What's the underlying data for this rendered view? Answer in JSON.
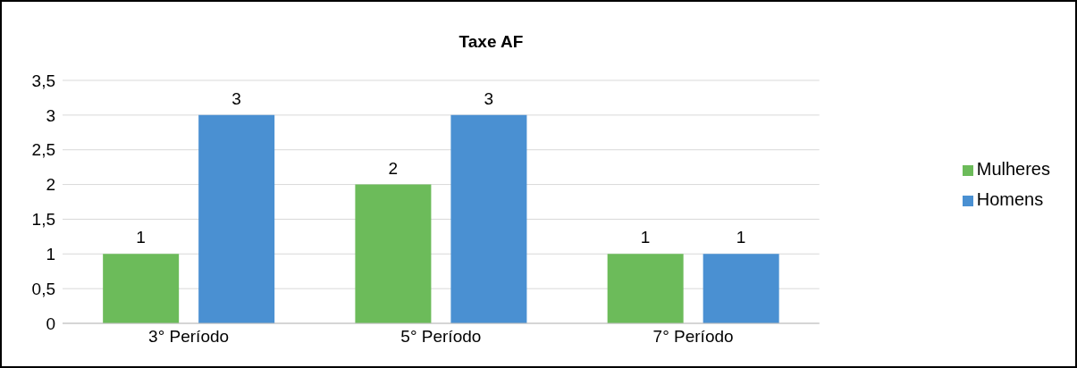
{
  "chart_data": {
    "type": "bar",
    "title": "Taxe AF",
    "categories": [
      "3° Período",
      "5° Período",
      "7° Período"
    ],
    "series": [
      {
        "name": "Mulheres",
        "color": "#6cbb5a",
        "values": [
          1,
          2,
          1
        ]
      },
      {
        "name": "Homens",
        "color": "#4a90d2",
        "values": [
          3,
          3,
          1
        ]
      }
    ],
    "ylim": [
      0,
      3.5
    ],
    "yticks": [
      0,
      {
        "value": 0.5,
        "label": "0,5"
      },
      1,
      {
        "value": 1.5,
        "label": "1,5"
      },
      2,
      {
        "value": 2.5,
        "label": "2,5"
      },
      3,
      {
        "value": 3.5,
        "label": "3,5"
      }
    ],
    "grid": "y",
    "legend": "right",
    "data_labels": true
  }
}
